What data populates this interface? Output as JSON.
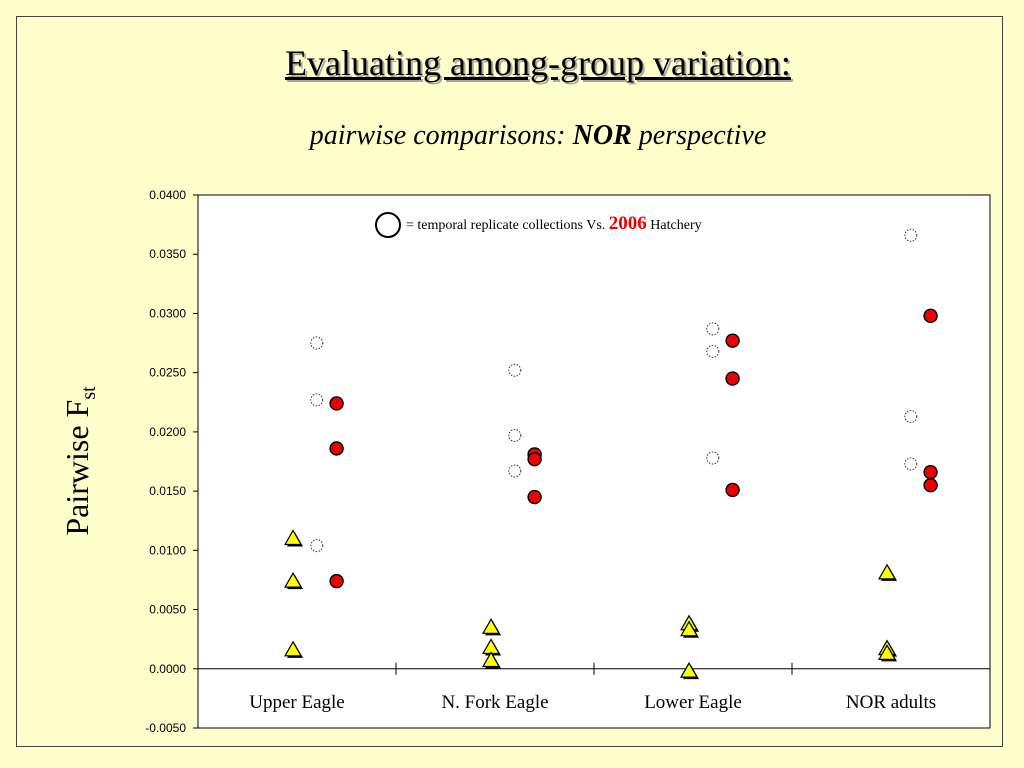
{
  "slide": {
    "title": "Evaluating among-group variation:",
    "subtitle_prefix": "pairwise comparisons:",
    "subtitle_bold": "NOR",
    "subtitle_suffix": "perspective",
    "ylabel_main": "Pairwise F",
    "ylabel_sub": "st"
  },
  "legend": {
    "text_before": "= temporal replicate collections Vs.",
    "highlight": "2006",
    "text_after": "Hatchery",
    "highlight_color": "#ee0000"
  },
  "colors": {
    "background": "#ffffcc",
    "red_marker": "#ee0000",
    "triangle_marker": "#ffff00",
    "plot_area": "#ffffff"
  },
  "chart_data": {
    "type": "scatter",
    "title": "",
    "ylabel": "Pairwise F st",
    "ylim": [
      -0.005,
      0.04
    ],
    "yticks": [
      "-0.0050",
      "0.0000",
      "0.0050",
      "0.0100",
      "0.0150",
      "0.0200",
      "0.0250",
      "0.0300",
      "0.0350",
      "0.0400"
    ],
    "yticks_values": [
      -0.005,
      0,
      0.005,
      0.01,
      0.015,
      0.02,
      0.025,
      0.03,
      0.035,
      0.04
    ],
    "categories": [
      "Upper Eagle",
      "N. Fork Eagle",
      "Lower Eagle",
      "NOR adults"
    ],
    "grid": false,
    "series": [
      {
        "marker": "triangle",
        "values": [
          [
            0.011,
            0.0074,
            0.0016
          ],
          [
            0.0035,
            0.0018,
            0.0007
          ],
          [
            0.0038,
            0.0033,
            -0.0002
          ],
          [
            0.0081,
            0.0017,
            0.0013
          ]
        ]
      },
      {
        "marker": "open-dotted-circle",
        "values": [
          [
            0.0275,
            0.0227,
            0.0104
          ],
          [
            0.0252,
            0.0197,
            0.0167
          ],
          [
            0.0287,
            0.0268,
            0.0178
          ],
          [
            0.0366,
            0.0213,
            0.0173
          ]
        ]
      },
      {
        "marker": "filled-red-circle",
        "values": [
          [
            0.0224,
            0.0186,
            0.0074
          ],
          [
            0.0181,
            0.0177,
            0.0145
          ],
          [
            0.0277,
            0.0245,
            0.0151
          ],
          [
            0.0298,
            0.0166,
            0.0155
          ]
        ]
      }
    ]
  }
}
